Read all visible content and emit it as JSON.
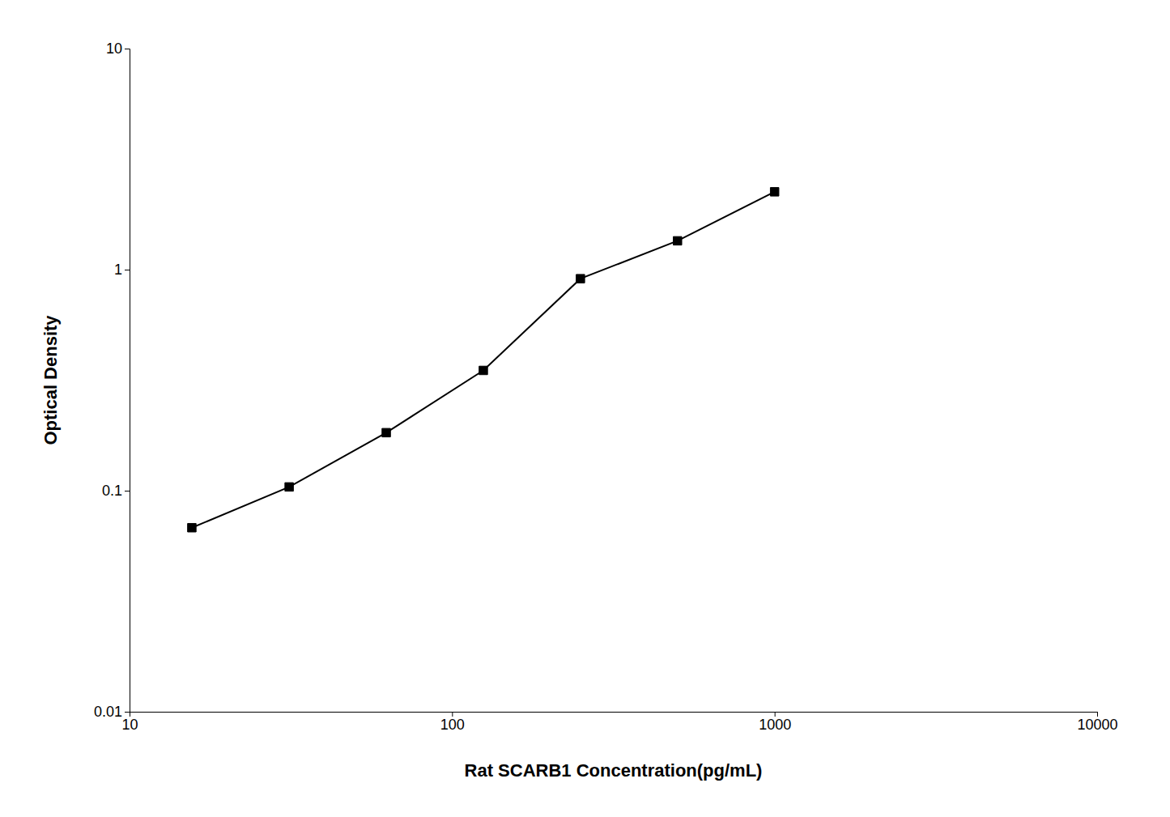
{
  "chart_data": {
    "type": "line",
    "x": [
      15.6,
      31.25,
      62.5,
      125,
      250,
      500,
      1000
    ],
    "values": [
      0.068,
      0.104,
      0.183,
      0.35,
      0.91,
      1.35,
      2.25
    ],
    "xlabel": "Rat SCARB1 Concentration(pg/mL)",
    "ylabel": "Optical Density",
    "xlim": [
      10,
      10000
    ],
    "ylim": [
      0.01,
      10
    ],
    "xticks": [
      10,
      100,
      1000,
      10000
    ],
    "yticks": [
      0.01,
      0.1,
      1,
      10
    ],
    "log": true,
    "color": "#000000",
    "marker": "square",
    "grid": false
  }
}
